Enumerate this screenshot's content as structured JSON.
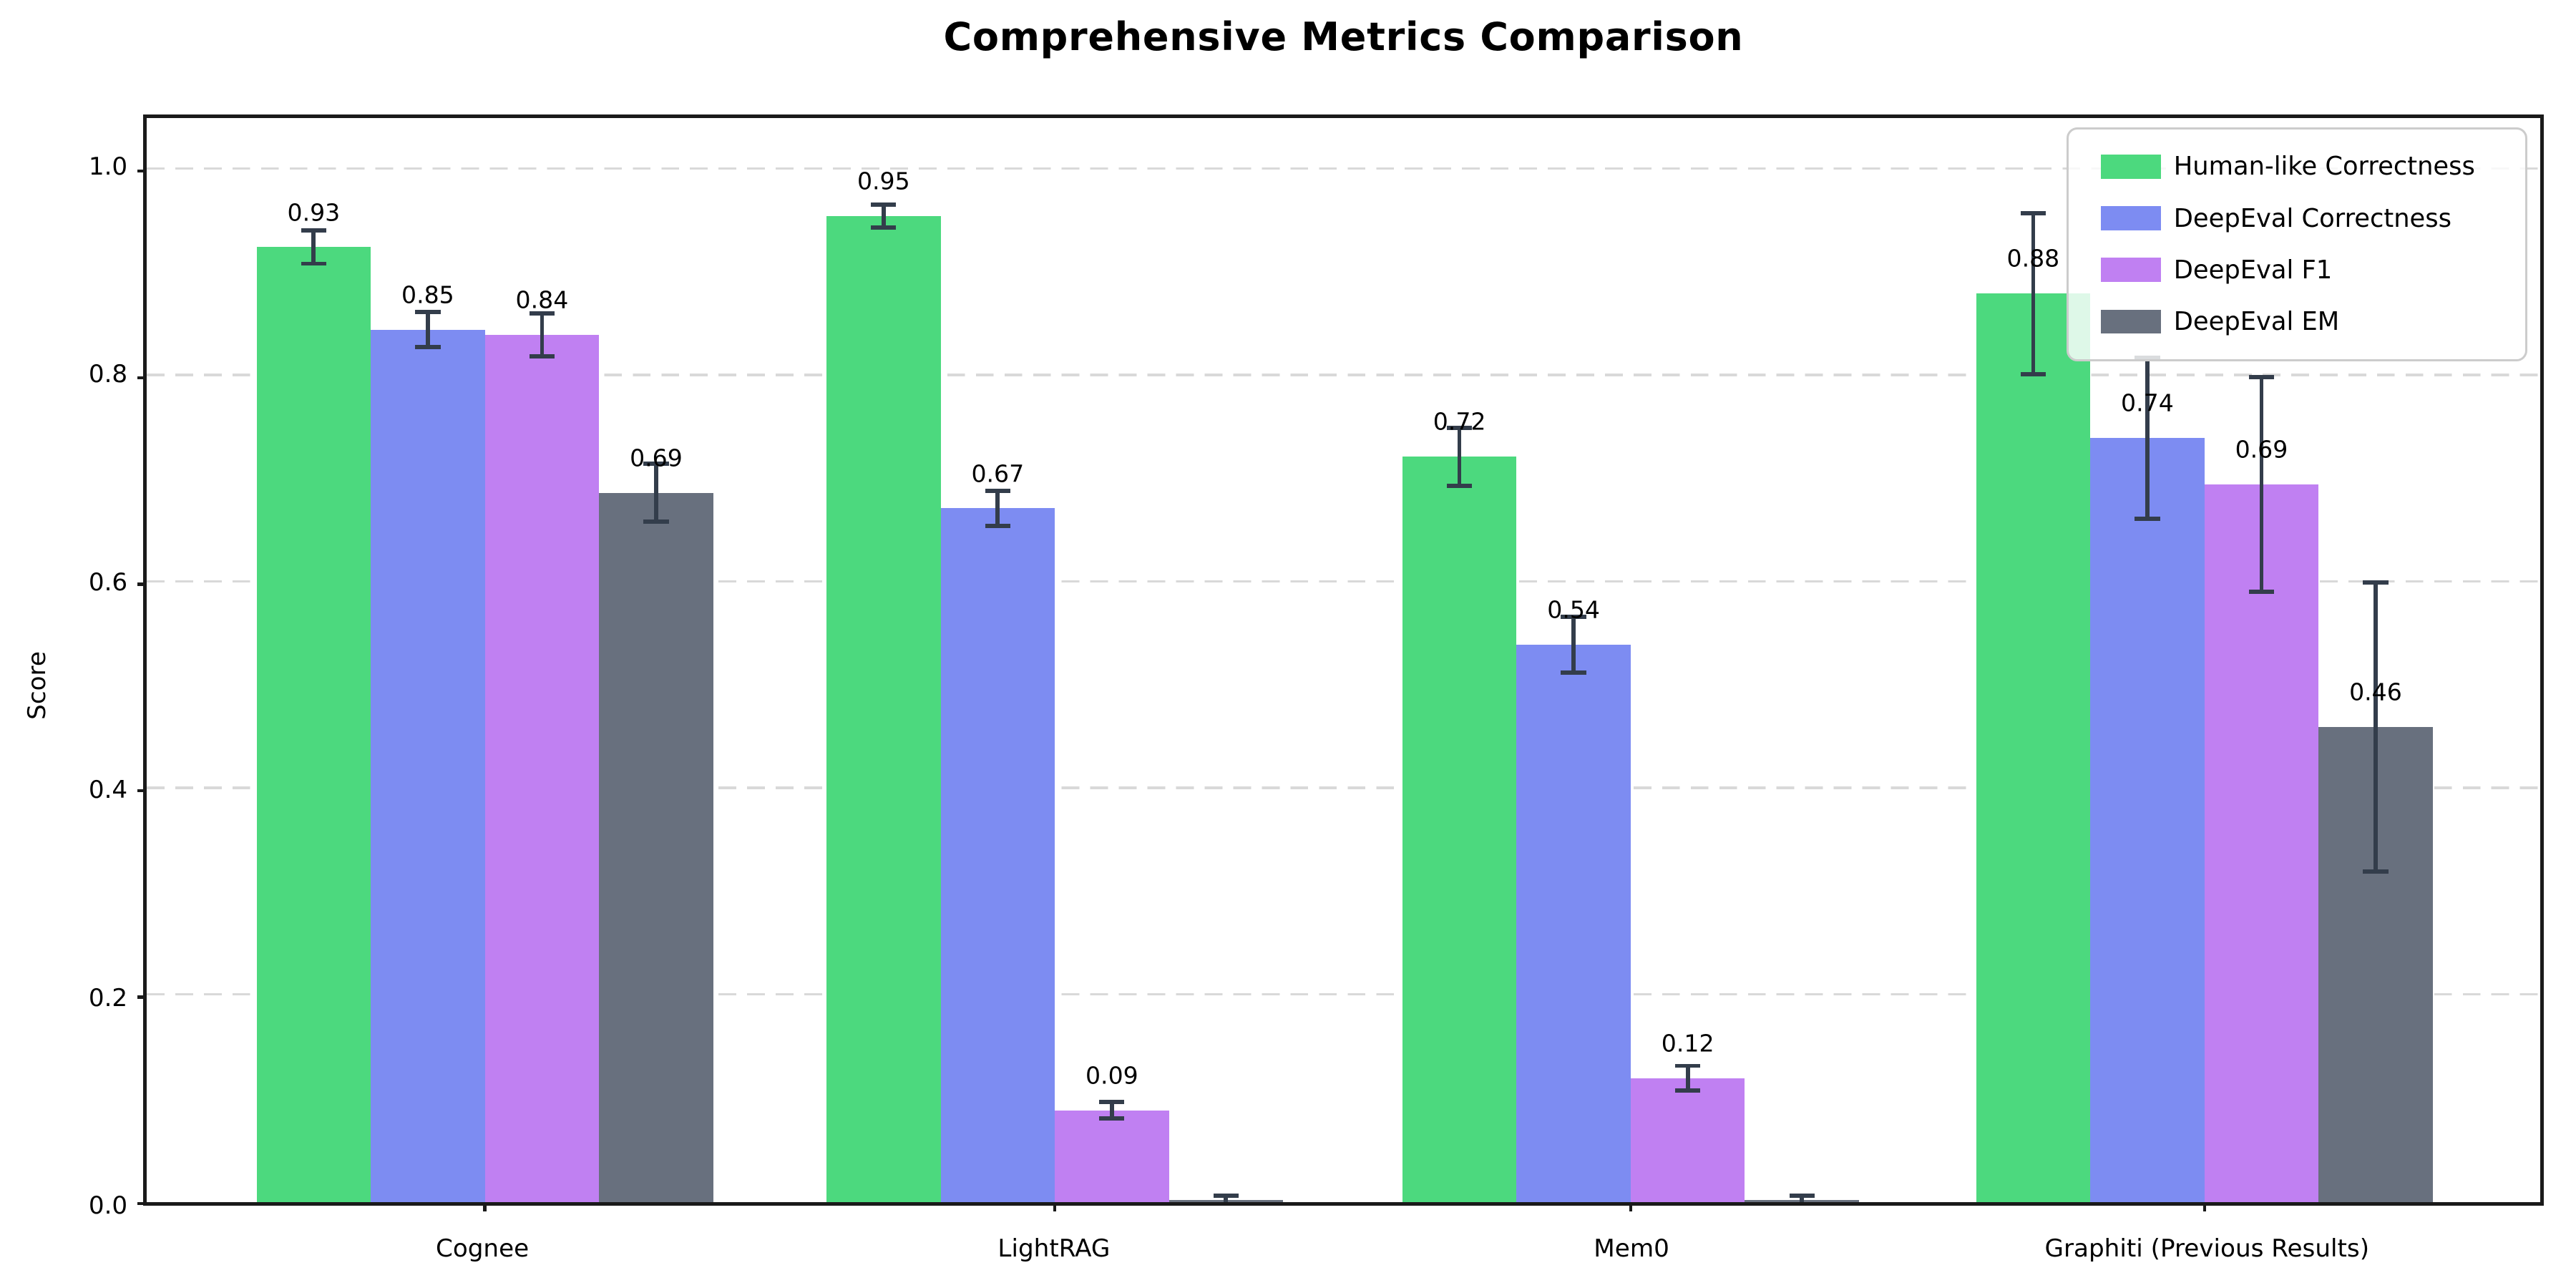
{
  "chart_data": {
    "type": "bar",
    "title": "Comprehensive Metrics Comparison",
    "ylabel": "Score",
    "xlabel": "",
    "categories": [
      "Cognee",
      "LightRAG",
      "Mem0",
      "Graphiti (Previous Results)"
    ],
    "series": [
      {
        "name": "Human-like Correctness",
        "color": "#4cd97e",
        "values": [
          0.925,
          0.955,
          0.722,
          0.88
        ],
        "errors": [
          0.016,
          0.011,
          0.028,
          0.078
        ],
        "labels": [
          "0.93",
          "0.95",
          "0.72",
          "0.88"
        ]
      },
      {
        "name": "DeepEval Correctness",
        "color": "#7d8cf2",
        "values": [
          0.845,
          0.672,
          0.54,
          0.74
        ],
        "errors": [
          0.017,
          0.017,
          0.027,
          0.078
        ],
        "labels": [
          "0.85",
          "0.67",
          "0.54",
          "0.74"
        ]
      },
      {
        "name": "DeepEval F1",
        "color": "#c080f2",
        "values": [
          0.84,
          0.089,
          0.12,
          0.695
        ],
        "errors": [
          0.021,
          0.008,
          0.012,
          0.104
        ],
        "labels": [
          "0.84",
          "0.09",
          "0.12",
          "0.69"
        ]
      },
      {
        "name": "DeepEval EM",
        "color": "#68707e",
        "values": [
          0.687,
          0.002,
          0.002,
          0.46
        ],
        "errors": [
          0.028,
          0.004,
          0.004,
          0.14
        ],
        "labels": [
          "0.69",
          null,
          null,
          "0.46"
        ]
      }
    ],
    "yticks": [
      "0.0",
      "0.2",
      "0.4",
      "0.6",
      "0.8",
      "1.0"
    ],
    "ylim": [
      0,
      1.05
    ],
    "grid": "horizontal dashed",
    "legend_position": "upper right",
    "error_bar_color": "#333d4b"
  }
}
